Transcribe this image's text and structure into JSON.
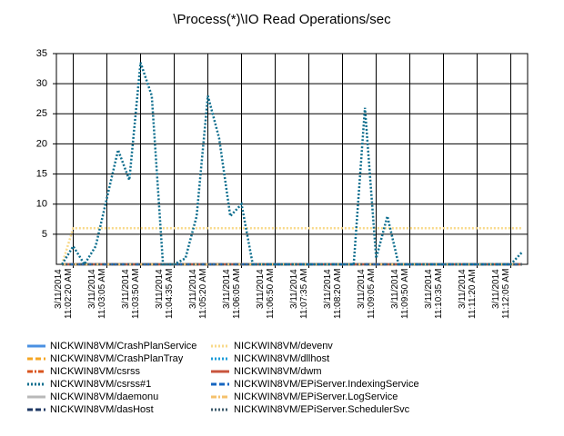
{
  "chart_data": {
    "type": "line",
    "title": "\\Process(*)\\IO Read Operations/sec",
    "categories": [
      null,
      "3/11/2014 11:02:20 AM",
      null,
      null,
      "3/11/2014 11:03:05 AM",
      null,
      null,
      "3/11/2014 11:03:50 AM",
      null,
      null,
      "3/11/2014 11:04:35 AM",
      null,
      null,
      "3/11/2014 11:05:20 AM",
      null,
      null,
      "3/11/2014 11:06:05 AM",
      null,
      null,
      "3/11/2014 11:06:50 AM",
      null,
      null,
      "3/11/2014 11:07:35 AM",
      null,
      null,
      "3/11/2014 11:08:20 AM",
      null,
      null,
      "3/11/2014 11:09:05 AM",
      null,
      null,
      "3/11/2014 11:09:50 AM",
      null,
      null,
      "3/11/2014 11:10:35 AM",
      null,
      null,
      "3/11/2014 11:11:20 AM",
      null,
      null,
      "3/11/2014 11:12:05 AM",
      null
    ],
    "ylim": [
      0,
      35
    ],
    "yticks": [
      5,
      10,
      15,
      20,
      25,
      30,
      35
    ],
    "grid": true,
    "series": [
      {
        "name": "NICKWIN8VM/CrashPlanService",
        "color": "#4a90e2",
        "style": "solid",
        "values": [
          0,
          0,
          0,
          0,
          0,
          0,
          0,
          0,
          0,
          0,
          0,
          0,
          0,
          0,
          0,
          0,
          0,
          0,
          0,
          0,
          0,
          0,
          0,
          0,
          0,
          0,
          0,
          0,
          0,
          0,
          0,
          0,
          0,
          0,
          0,
          0,
          0,
          0,
          0,
          0,
          0,
          0
        ]
      },
      {
        "name": "NICKWIN8VM/CrashPlanTray",
        "color": "#f5a623",
        "style": "dash",
        "values": [
          0,
          0,
          0,
          0,
          0,
          0,
          0,
          0,
          0,
          0,
          0,
          0,
          0,
          0,
          0,
          0,
          0,
          0,
          0,
          0,
          0,
          0,
          0,
          0,
          0,
          0,
          0,
          0,
          0,
          0,
          0,
          0,
          0,
          0,
          0,
          0,
          0,
          0,
          0,
          0,
          0,
          0
        ]
      },
      {
        "name": "NICKWIN8VM/csrss",
        "color": "#d9541e",
        "style": "dashdot",
        "values": [
          0,
          0,
          0,
          0,
          0,
          0,
          0,
          0,
          0,
          0,
          0,
          0,
          0,
          0,
          0,
          0,
          0,
          0,
          0,
          0,
          0,
          0,
          0,
          0,
          0,
          0,
          0,
          0,
          0,
          0,
          0,
          0,
          0,
          0,
          0,
          0,
          0,
          0,
          0,
          0,
          0,
          0
        ]
      },
      {
        "name": "NICKWIN8VM/daemonu",
        "color": "#b8b8b8",
        "style": "solid",
        "values": [
          0,
          0,
          0,
          0,
          0,
          0,
          0,
          0,
          0,
          0,
          0,
          0,
          0,
          0,
          0,
          0,
          0,
          0,
          0,
          0,
          0,
          0,
          0,
          0,
          0,
          0,
          0,
          0,
          0,
          0,
          0,
          0,
          0,
          0,
          0,
          0,
          0,
          0,
          0,
          0,
          0,
          0
        ]
      },
      {
        "name": "NICKWIN8VM/dasHost",
        "color": "#1f3864",
        "style": "dash",
        "values": [
          0,
          0,
          0,
          0,
          0,
          0,
          0,
          0,
          0,
          0,
          0,
          0,
          0,
          0,
          0,
          0,
          0,
          0,
          0,
          0,
          0,
          0,
          0,
          0,
          0,
          0,
          0,
          0,
          0,
          0,
          0,
          0,
          0,
          0,
          0,
          0,
          0,
          0,
          0,
          0,
          0,
          0
        ]
      },
      {
        "name": "NICKWIN8VM/devenv",
        "color": "#f8d98a",
        "style": "dot",
        "values": [
          0,
          6,
          6,
          6,
          6,
          6,
          6,
          6,
          6,
          6,
          6,
          6,
          6,
          6,
          6,
          6,
          6,
          6,
          6,
          6,
          6,
          6,
          6,
          6,
          6,
          6,
          6,
          6,
          6,
          6,
          6,
          6,
          6,
          6,
          6,
          6,
          6,
          6,
          6,
          6,
          6,
          6
        ]
      },
      {
        "name": "NICKWIN8VM/dllhost",
        "color": "#1a9cd8",
        "style": "dot",
        "values": [
          0,
          0,
          0,
          0,
          0,
          0,
          0,
          0,
          0,
          0,
          0,
          0,
          0,
          0,
          0,
          0,
          0,
          0,
          0,
          0,
          0,
          0,
          0,
          0,
          0,
          0,
          0,
          0,
          0,
          0,
          0,
          0,
          0,
          0,
          0,
          0,
          0,
          0,
          0,
          0,
          0,
          0
        ]
      },
      {
        "name": "NICKWIN8VM/dwm",
        "color": "#c8553d",
        "style": "solid",
        "values": [
          0,
          0,
          0,
          0,
          0,
          0,
          0,
          0,
          0,
          0,
          0,
          0,
          0,
          0,
          0,
          0,
          0,
          0,
          0,
          0,
          0,
          0,
          0,
          0,
          0,
          0,
          0,
          0,
          0,
          0,
          0,
          0,
          0,
          0,
          0,
          0,
          0,
          0,
          0,
          0,
          0,
          0
        ]
      },
      {
        "name": "NICKWIN8VM/EPiServer.IndexingService",
        "color": "#1565c0",
        "style": "dash",
        "values": [
          0,
          0,
          0,
          0,
          0,
          0,
          0,
          0,
          0,
          0,
          0,
          0,
          0,
          0,
          0,
          0,
          0,
          0,
          0,
          0,
          0,
          0,
          0,
          0,
          0,
          0,
          0,
          0,
          0,
          0,
          0,
          0,
          0,
          0,
          0,
          0,
          0,
          0,
          0,
          0,
          0,
          0
        ]
      },
      {
        "name": "NICKWIN8VM/EPiServer.LogService",
        "color": "#f5c16c",
        "style": "dashdot",
        "values": [
          0,
          0,
          0,
          0,
          0,
          0,
          0,
          0,
          0,
          0,
          0,
          0,
          0,
          0,
          0,
          0,
          0,
          0,
          0,
          0,
          0,
          0,
          0,
          0,
          0,
          0,
          0,
          0,
          0,
          0,
          0,
          0,
          0,
          0,
          0,
          0,
          0,
          0,
          0,
          0,
          0,
          0
        ]
      },
      {
        "name": "NICKWIN8VM/EPiServer.SchedulerSvc",
        "color": "#3c5a6b",
        "style": "dot",
        "values": [
          0,
          0,
          0,
          0,
          0,
          0,
          0,
          0,
          0,
          0,
          0,
          0,
          0,
          0,
          0,
          0,
          0,
          0,
          0,
          0,
          0,
          0,
          0,
          0,
          0,
          0,
          0,
          0,
          0,
          0,
          0,
          0,
          0,
          0,
          0,
          0,
          0,
          0,
          0,
          0,
          0,
          0
        ]
      },
      {
        "name": "NICKWIN8VM/csrss#1",
        "color": "#0e6e8e",
        "style": "dot",
        "values": [
          0,
          3,
          0,
          3,
          11,
          19,
          14,
          33.5,
          28,
          0,
          0,
          1,
          8,
          28,
          21,
          8,
          10,
          0,
          0,
          0,
          0,
          0,
          0,
          0,
          0,
          0,
          0,
          26,
          1,
          8,
          0,
          0,
          0,
          0,
          0,
          0,
          0,
          0,
          0,
          0,
          0,
          2
        ]
      }
    ],
    "legend_order": [
      0,
      5,
      1,
      6,
      2,
      7,
      11,
      8,
      3,
      9,
      4,
      10
    ]
  }
}
